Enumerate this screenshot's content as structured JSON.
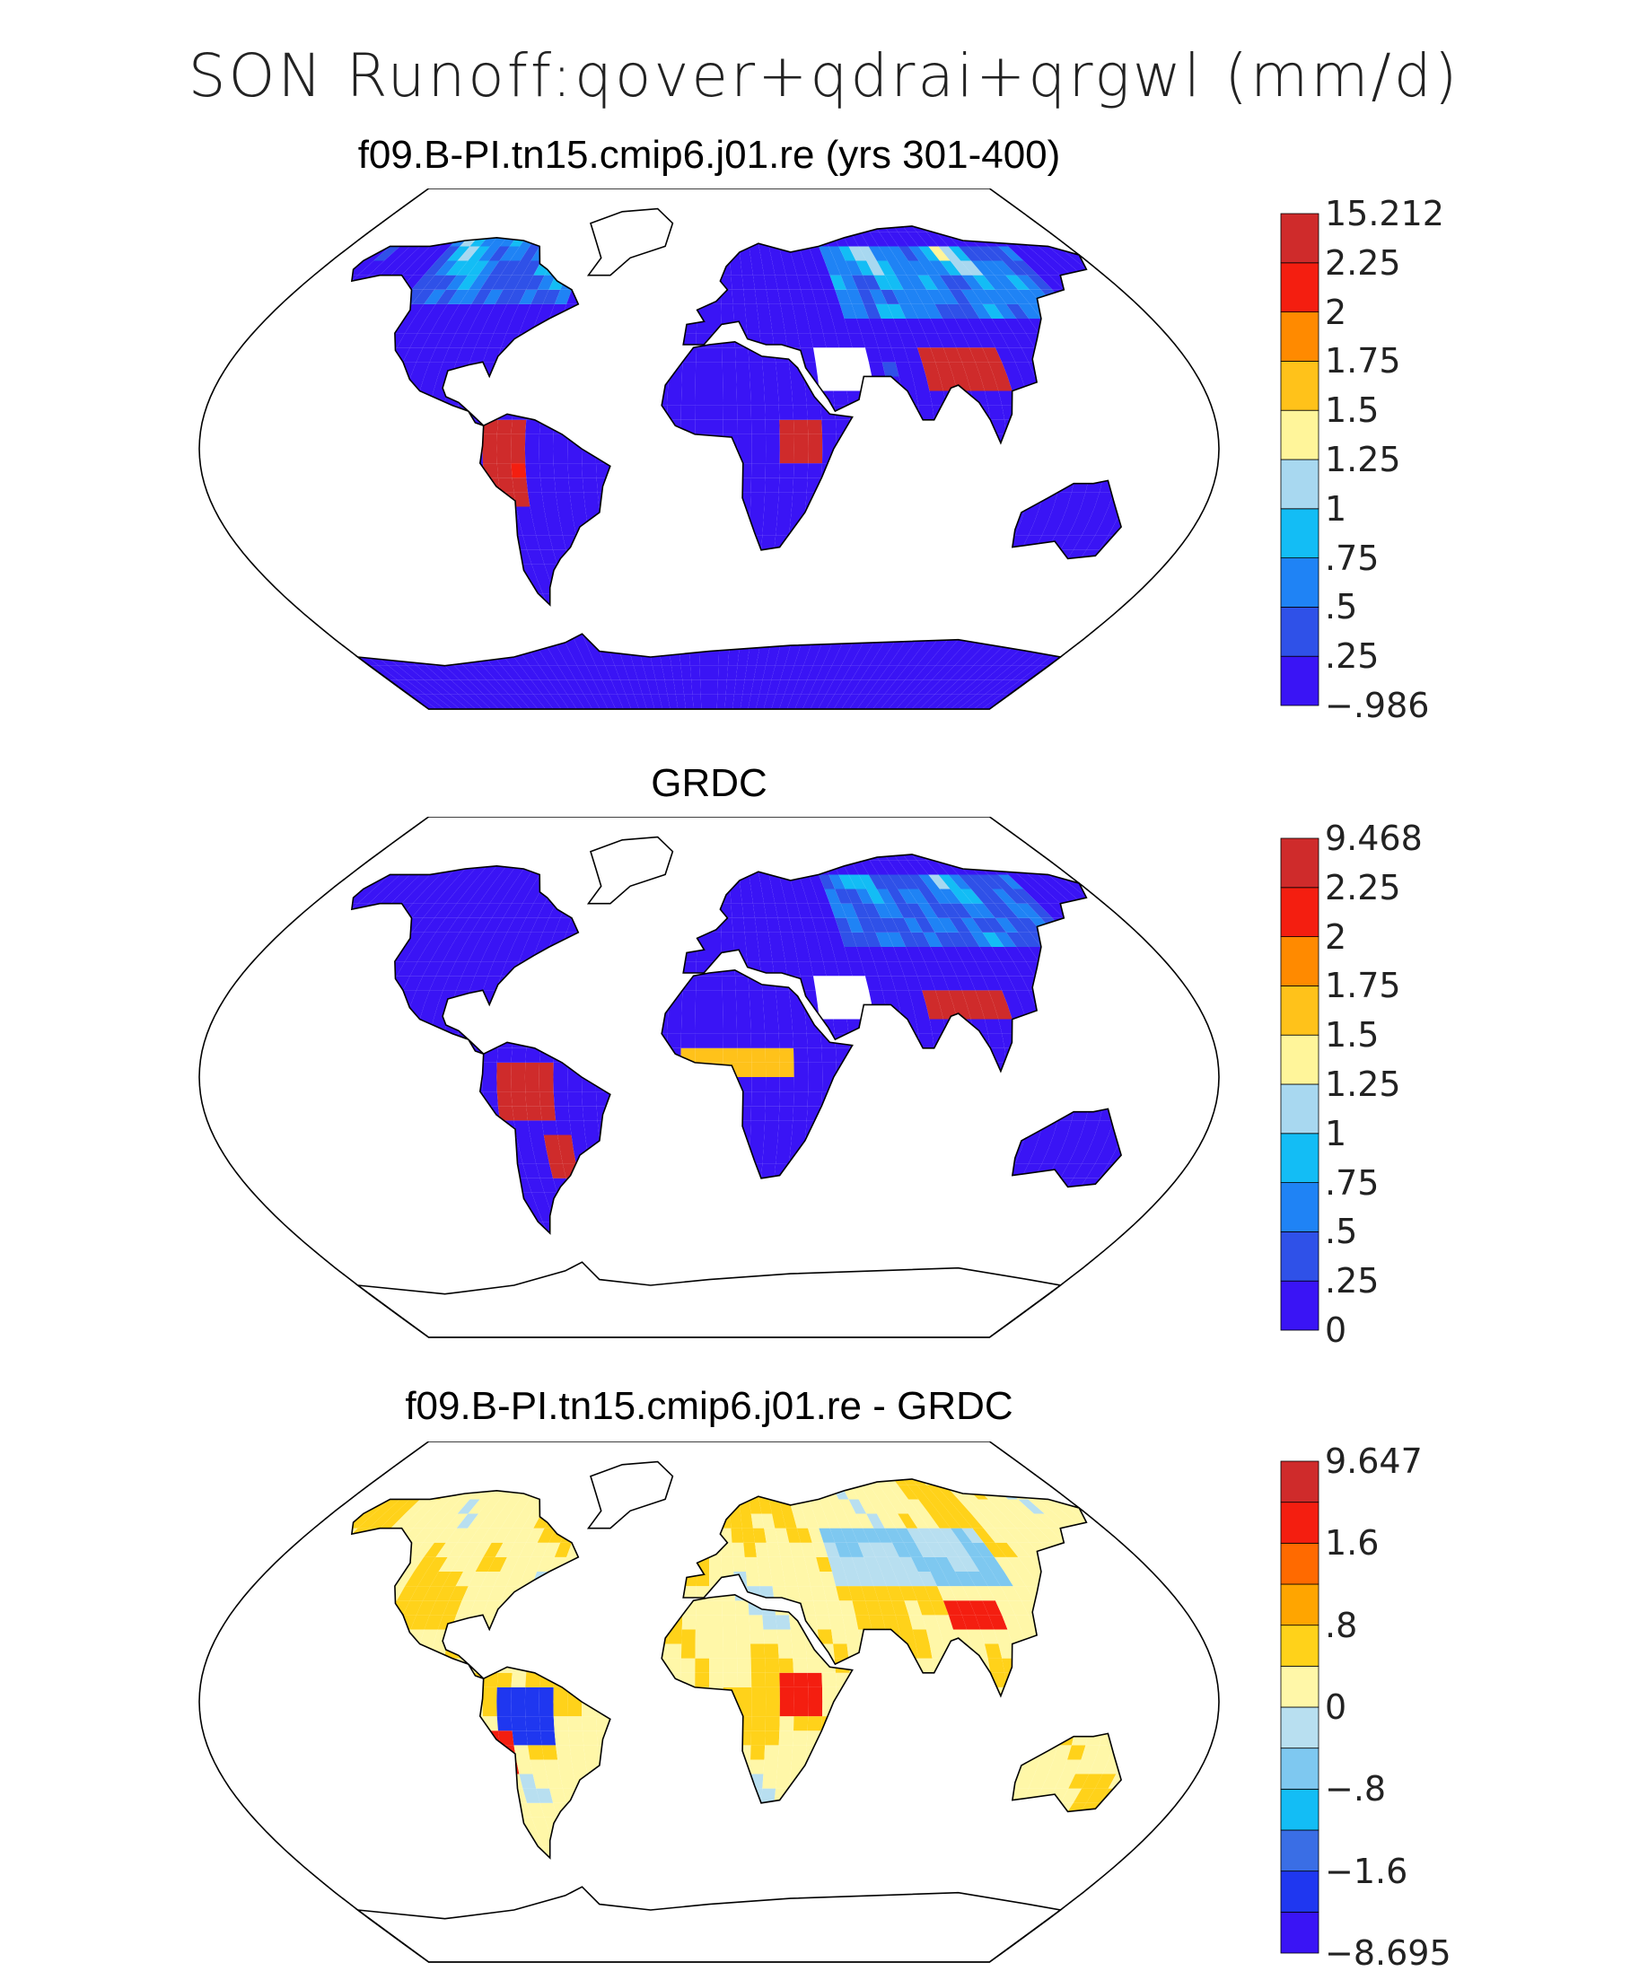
{
  "figure_title": "SON Runoff:qover+qdrai+qrgwl (mm/d)",
  "panels": [
    {
      "title": "f09.B-PI.tn15.cmip6.j01.re (yrs 301-400)",
      "field": "model",
      "colorbar": {
        "colors": [
          "#3a14f5",
          "#2f51e8",
          "#1f83f5",
          "#13bdf5",
          "#a8d8f0",
          "#fff59a",
          "#ffc21a",
          "#ff8a00",
          "#f41e10",
          "#cf2b2b"
        ],
        "labels": [
          "−.986",
          ".25",
          ".5",
          ".75",
          "1",
          "1.25",
          "1.5",
          "1.75",
          "2",
          "2.25",
          "15.212"
        ]
      }
    },
    {
      "title": "GRDC",
      "field": "obs",
      "colorbar": {
        "colors": [
          "#3a14f5",
          "#2f51e8",
          "#1f83f5",
          "#13bdf5",
          "#a8d8f0",
          "#fff59a",
          "#ffc21a",
          "#ff8a00",
          "#f41e10",
          "#cf2b2b"
        ],
        "labels": [
          "0",
          ".25",
          ".5",
          ".75",
          "1",
          "1.25",
          "1.5",
          "1.75",
          "2",
          "2.25",
          "9.468"
        ]
      }
    },
    {
      "title": "f09.B-PI.tn15.cmip6.j01.re - GRDC",
      "field": "diff",
      "colorbar": {
        "colors": [
          "#3a14f5",
          "#1f37f0",
          "#3a6ee5",
          "#13bdf5",
          "#7ec8f0",
          "#b8dff0",
          "#fff7a8",
          "#ffd21a",
          "#ffa500",
          "#ff6a00",
          "#f41e10",
          "#cf2b2b"
        ],
        "labels": [
          "−8.695",
          "",
          "−1.6",
          "",
          "−.8",
          "",
          "0",
          "",
          ".8",
          "",
          "1.6",
          "",
          "9.647"
        ]
      }
    }
  ],
  "chart_data": [
    {
      "type": "heatmap",
      "title": "f09.B-PI.tn15.cmip6.j01.re (yrs 301-400)",
      "levels": [
        -0.986,
        0.25,
        0.5,
        0.75,
        1,
        1.25,
        1.5,
        1.75,
        2,
        2.25,
        15.212
      ]
    },
    {
      "type": "heatmap",
      "title": "GRDC",
      "levels": [
        0,
        0.25,
        0.5,
        0.75,
        1,
        1.25,
        1.5,
        1.75,
        2,
        2.25,
        9.468
      ]
    },
    {
      "type": "heatmap",
      "title": "f09.B-PI.tn15.cmip6.j01.re - GRDC",
      "levels": [
        -8.695,
        -1.6,
        -0.8,
        0,
        0.8,
        1.6,
        9.647
      ]
    }
  ]
}
